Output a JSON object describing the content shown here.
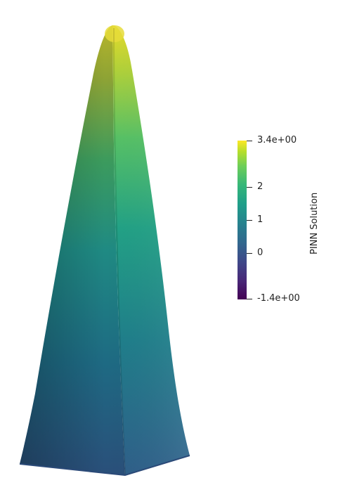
{
  "colorbar": {
    "title": "PINN Solution",
    "range": [
      -1.4,
      3.4
    ],
    "max_label": "3.4e+00",
    "min_label": "-1.4e+00",
    "ticks": [
      {
        "value": 2,
        "label": "2"
      },
      {
        "value": 1,
        "label": "1"
      },
      {
        "value": 0,
        "label": "0"
      }
    ],
    "colormap": "viridis"
  },
  "colors": {
    "background": "#ffffff",
    "text": "#222222"
  }
}
